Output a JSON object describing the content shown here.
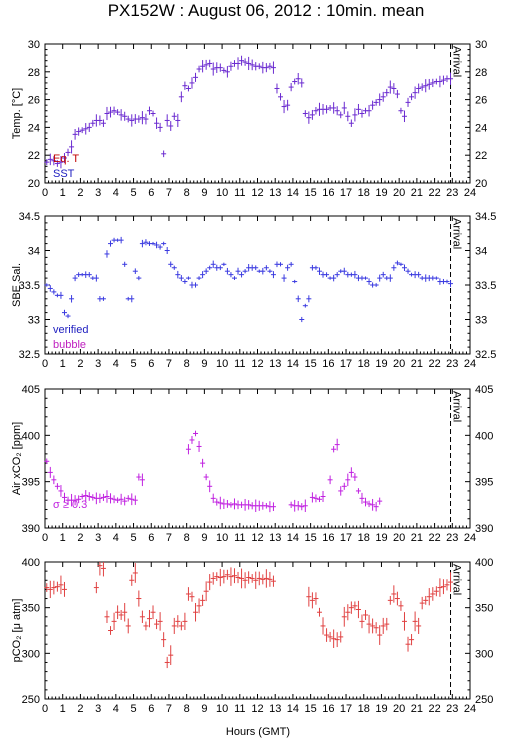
{
  "title": "PX152W : August 06, 2012 : 10min. mean",
  "xlabel": "Hours (GMT)",
  "colors": {
    "temp": "#6a2ad0",
    "sal": "#3a3ae0",
    "sal_bubble": "#c020c0",
    "air": "#c020e0",
    "pco2": "#e04040",
    "label_red": "#c00000",
    "label_blue": "#2020c0"
  },
  "chart_data": [
    {
      "type": "scatter",
      "ylabel": "Temp. [°C]",
      "xlim": [
        0,
        24
      ],
      "ylim": [
        20,
        30
      ],
      "xticks": [
        "0",
        "1",
        "2",
        "3",
        "4",
        "5",
        "6",
        "7",
        "8",
        "9",
        "10",
        "11",
        "12",
        "13",
        "14",
        "15",
        "16",
        "17",
        "18",
        "19",
        "20",
        "21",
        "22",
        "23",
        "24"
      ],
      "yticks": [
        "20",
        "22",
        "24",
        "26",
        "28",
        "30"
      ],
      "annotation": "Arrival",
      "arrival_x": 22.9,
      "legend": [
        "Eq. T",
        "SST"
      ],
      "series": [
        {
          "name": "SST",
          "x": [
            0.1,
            0.3,
            0.5,
            0.7,
            0.9,
            1.1,
            1.3,
            1.5,
            1.7,
            1.9,
            2.1,
            2.3,
            2.5,
            2.7,
            2.9,
            3.1,
            3.3,
            3.5,
            3.7,
            3.9,
            4.1,
            4.3,
            4.5,
            4.7,
            4.9,
            5.1,
            5.3,
            5.5,
            5.7,
            5.9,
            6.1,
            6.3,
            6.5,
            6.7,
            6.9,
            7.1,
            7.3,
            7.5,
            7.7,
            7.9,
            8.1,
            8.3,
            8.5,
            8.7,
            8.9,
            9.1,
            9.3,
            9.5,
            9.7,
            9.9,
            10.1,
            10.3,
            10.5,
            10.7,
            10.9,
            11.1,
            11.3,
            11.5,
            11.7,
            11.9,
            12.1,
            12.3,
            12.5,
            12.7,
            12.9,
            13.1,
            13.3,
            13.5,
            13.7,
            13.9,
            14.1,
            14.3,
            14.5,
            14.7,
            14.9,
            15.1,
            15.3,
            15.5,
            15.7,
            15.9,
            16.1,
            16.3,
            16.5,
            16.7,
            16.9,
            17.1,
            17.3,
            17.5,
            17.7,
            17.9,
            18.1,
            18.3,
            18.5,
            18.7,
            18.9,
            19.1,
            19.3,
            19.5,
            19.7,
            19.9,
            20.1,
            20.3,
            20.5,
            20.7,
            20.9,
            21.1,
            21.3,
            21.5,
            21.7,
            21.9,
            22.1,
            22.3,
            22.5,
            22.7,
            22.9
          ],
          "y": [
            21.5,
            21.7,
            21.6,
            21.4,
            21.5,
            21.8,
            22.2,
            22.6,
            23.5,
            23.7,
            23.8,
            23.9,
            24.0,
            24.3,
            24.5,
            24.5,
            24.3,
            25.0,
            25.1,
            25.2,
            25.1,
            24.9,
            24.8,
            24.6,
            24.5,
            24.6,
            24.6,
            24.7,
            24.6,
            25.2,
            25.0,
            24.3,
            24.0,
            22.1,
            24.5,
            24.1,
            24.8,
            24.5,
            26.2,
            27.0,
            26.8,
            27.2,
            27.6,
            28.2,
            28.4,
            28.5,
            28.6,
            28.2,
            28.3,
            28.3,
            28.1,
            28.0,
            28.4,
            28.6,
            28.6,
            28.8,
            28.7,
            28.6,
            28.5,
            28.4,
            28.4,
            28.3,
            28.3,
            28.4,
            28.3,
            26.8,
            26.2,
            25.5,
            25.6,
            26.9,
            27.3,
            27.5,
            27.2,
            25.0,
            24.7,
            24.9,
            25.2,
            25.3,
            25.3,
            25.3,
            25.4,
            25.4,
            25.2,
            24.9,
            25.4,
            24.8,
            24.3,
            24.9,
            25.3,
            25.0,
            25.2,
            25.2,
            25.6,
            25.8,
            26.0,
            26.2,
            26.5,
            26.9,
            26.8,
            26.4,
            25.2,
            24.8,
            25.8,
            26.2,
            26.5,
            26.8,
            26.9,
            27.0,
            27.1,
            27.2,
            27.3,
            27.3,
            27.4,
            27.5,
            27.5
          ]
        }
      ]
    },
    {
      "type": "scatter",
      "ylabel": "SBE Sal.",
      "xlim": [
        0,
        24
      ],
      "ylim": [
        32.5,
        34.5
      ],
      "xticks": [
        "0",
        "1",
        "2",
        "3",
        "4",
        "5",
        "6",
        "7",
        "8",
        "9",
        "10",
        "11",
        "12",
        "13",
        "14",
        "15",
        "16",
        "17",
        "18",
        "19",
        "20",
        "21",
        "22",
        "23",
        "24"
      ],
      "yticks": [
        "32.5",
        "33",
        "33.5",
        "34",
        "34.5"
      ],
      "annotation": "Arrival",
      "arrival_x": 22.9,
      "legend": [
        "verified",
        "bubble"
      ],
      "series": [
        {
          "name": "verified",
          "x": [
            0.1,
            0.3,
            0.5,
            0.7,
            0.9,
            1.1,
            1.3,
            1.5,
            1.7,
            1.9,
            2.1,
            2.3,
            2.5,
            2.7,
            2.9,
            3.1,
            3.3,
            3.5,
            3.7,
            3.9,
            4.1,
            4.3,
            4.5,
            4.7,
            4.9,
            5.1,
            5.3,
            5.5,
            5.7,
            5.9,
            6.1,
            6.3,
            6.5,
            6.7,
            6.9,
            7.1,
            7.3,
            7.5,
            7.7,
            7.9,
            8.1,
            8.3,
            8.5,
            8.7,
            8.9,
            9.1,
            9.3,
            9.5,
            9.7,
            9.9,
            10.1,
            10.3,
            10.5,
            10.7,
            10.9,
            11.1,
            11.3,
            11.5,
            11.7,
            11.9,
            12.1,
            12.3,
            12.5,
            12.7,
            12.9,
            13.1,
            13.3,
            13.5,
            13.7,
            13.9,
            14.1,
            14.3,
            14.5,
            14.7,
            14.9,
            15.1,
            15.3,
            15.5,
            15.7,
            15.9,
            16.1,
            16.3,
            16.5,
            16.7,
            16.9,
            17.1,
            17.3,
            17.5,
            17.7,
            17.9,
            18.1,
            18.3,
            18.5,
            18.7,
            18.9,
            19.1,
            19.3,
            19.5,
            19.7,
            19.9,
            20.1,
            20.3,
            20.5,
            20.7,
            20.9,
            21.1,
            21.3,
            21.5,
            21.7,
            21.9,
            22.1,
            22.3,
            22.5,
            22.7,
            22.9
          ],
          "y": [
            33.5,
            33.45,
            33.4,
            33.35,
            33.35,
            33.1,
            33.05,
            33.3,
            33.6,
            33.65,
            33.65,
            33.65,
            33.65,
            33.6,
            33.6,
            33.3,
            33.3,
            33.95,
            34.1,
            34.15,
            34.15,
            34.15,
            33.8,
            33.3,
            33.3,
            33.7,
            33.6,
            34.1,
            34.12,
            34.1,
            34.1,
            34.08,
            34.05,
            34.1,
            34.0,
            33.8,
            33.75,
            33.65,
            33.6,
            33.55,
            33.6,
            33.5,
            33.5,
            33.6,
            33.65,
            33.7,
            33.75,
            33.8,
            33.75,
            33.75,
            33.8,
            33.7,
            33.65,
            33.6,
            33.7,
            33.65,
            33.7,
            33.75,
            33.75,
            33.75,
            33.7,
            33.7,
            33.75,
            33.7,
            33.65,
            33.8,
            33.8,
            33.6,
            33.75,
            33.8,
            33.55,
            33.3,
            33.0,
            33.2,
            33.3,
            33.75,
            33.75,
            33.7,
            33.65,
            33.65,
            33.6,
            33.6,
            33.65,
            33.7,
            33.7,
            33.65,
            33.65,
            33.65,
            33.6,
            33.6,
            33.6,
            33.55,
            33.5,
            33.5,
            33.6,
            33.65,
            33.6,
            33.6,
            33.75,
            33.82,
            33.8,
            33.75,
            33.7,
            33.65,
            33.65,
            33.65,
            33.6,
            33.6,
            33.6,
            33.6,
            33.6,
            33.55,
            33.55,
            33.55,
            33.52
          ]
        }
      ]
    },
    {
      "type": "scatter",
      "ylabel": "Air xCO₂ [ppm]",
      "xlim": [
        0,
        24
      ],
      "ylim": [
        390,
        405
      ],
      "xticks": [
        "0",
        "1",
        "2",
        "3",
        "4",
        "5",
        "6",
        "7",
        "8",
        "9",
        "10",
        "11",
        "12",
        "13",
        "14",
        "15",
        "16",
        "17",
        "18",
        "19",
        "20",
        "21",
        "22",
        "23",
        "24"
      ],
      "yticks": [
        "390",
        "395",
        "400",
        "405"
      ],
      "annotation": "Arrival",
      "arrival_x": 22.9,
      "legend": [
        "σ ≥ 0.3"
      ],
      "series": [
        {
          "name": "Air xCO2",
          "x": [
            0.1,
            0.3,
            0.5,
            0.7,
            0.9,
            1.1,
            1.3,
            1.5,
            1.7,
            1.9,
            2.1,
            2.3,
            2.5,
            2.7,
            2.9,
            3.1,
            3.3,
            3.5,
            3.7,
            3.9,
            4.1,
            4.3,
            4.5,
            4.7,
            4.9,
            5.1,
            5.3,
            5.5,
            8.1,
            8.3,
            8.5,
            8.7,
            8.9,
            9.1,
            9.3,
            9.5,
            9.7,
            9.9,
            10.1,
            10.3,
            10.5,
            10.7,
            10.9,
            11.1,
            11.3,
            11.5,
            11.7,
            11.9,
            12.1,
            12.3,
            12.5,
            12.7,
            12.9,
            13.9,
            14.1,
            14.3,
            14.5,
            14.7,
            15.1,
            15.3,
            15.5,
            15.7,
            16.1,
            16.3,
            16.5,
            16.7,
            16.9,
            17.1,
            17.3,
            17.5,
            17.7,
            17.9,
            18.1,
            18.3,
            18.5,
            18.7,
            18.9
          ],
          "y": [
            397.2,
            396.0,
            395.2,
            394.5,
            394.0,
            393.3,
            393.0,
            393.0,
            393.0,
            393.1,
            393.4,
            393.5,
            393.4,
            393.3,
            393.2,
            393.2,
            393.3,
            393.4,
            393.2,
            393.1,
            393.0,
            393.1,
            392.9,
            393.2,
            393.1,
            393.0,
            395.5,
            395.2,
            398.5,
            399.5,
            400.2,
            398.8,
            397.0,
            395.5,
            394.5,
            393.2,
            392.8,
            392.7,
            392.6,
            392.6,
            392.5,
            392.6,
            392.5,
            392.5,
            392.5,
            392.5,
            392.4,
            392.4,
            392.4,
            392.4,
            392.4,
            392.3,
            392.3,
            392.5,
            392.4,
            392.4,
            392.3,
            392.4,
            393.3,
            393.2,
            393.1,
            393.4,
            395.2,
            398.5,
            399.0,
            394.0,
            394.5,
            395.2,
            396.0,
            395.5,
            394.0,
            393.2,
            392.8,
            392.6,
            392.5,
            392.3,
            392.9
          ]
        }
      ]
    },
    {
      "type": "scatter",
      "ylabel": "pCO₂ [μ atm]",
      "xlim": [
        0,
        24
      ],
      "ylim": [
        250,
        400
      ],
      "xticks": [
        "0",
        "1",
        "2",
        "3",
        "4",
        "5",
        "6",
        "7",
        "8",
        "9",
        "10",
        "11",
        "12",
        "13",
        "14",
        "15",
        "16",
        "17",
        "18",
        "19",
        "20",
        "21",
        "22",
        "23",
        "24"
      ],
      "yticks": [
        "250",
        "300",
        "350",
        "400"
      ],
      "annotation": "Arrival",
      "arrival_x": 22.9,
      "series": [
        {
          "name": "pCO2",
          "x": [
            0.1,
            0.3,
            0.5,
            0.7,
            0.9,
            1.1,
            2.9,
            3.1,
            3.3,
            3.5,
            3.7,
            3.9,
            4.1,
            4.3,
            4.5,
            4.7,
            4.9,
            5.1,
            5.3,
            5.5,
            5.7,
            5.9,
            6.1,
            6.3,
            6.5,
            6.7,
            6.9,
            7.1,
            7.3,
            7.5,
            7.7,
            7.9,
            8.1,
            8.3,
            8.5,
            8.7,
            8.9,
            9.1,
            9.3,
            9.5,
            9.7,
            9.9,
            10.1,
            10.3,
            10.5,
            10.7,
            10.9,
            11.1,
            11.3,
            11.5,
            11.7,
            11.9,
            12.1,
            12.3,
            12.5,
            12.7,
            12.9,
            14.9,
            15.1,
            15.3,
            15.5,
            15.7,
            15.9,
            16.1,
            16.3,
            16.5,
            16.7,
            16.9,
            17.1,
            17.3,
            17.5,
            17.7,
            17.9,
            18.1,
            18.3,
            18.5,
            18.7,
            18.9,
            19.1,
            19.3,
            19.5,
            19.7,
            19.9,
            20.1,
            20.3,
            20.5,
            20.7,
            20.9,
            21.1,
            21.3,
            21.5,
            21.7,
            21.9,
            22.1,
            22.3,
            22.5,
            22.7,
            22.9
          ],
          "y": [
            372,
            370,
            372,
            373,
            375,
            370,
            372,
            396,
            393,
            340,
            325,
            335,
            345,
            342,
            345,
            330,
            380,
            388,
            360,
            340,
            330,
            338,
            345,
            332,
            335,
            315,
            290,
            298,
            330,
            335,
            330,
            335,
            365,
            362,
            345,
            352,
            358,
            368,
            378,
            382,
            384,
            383,
            384,
            386,
            384,
            385,
            383,
            382,
            380,
            383,
            382,
            380,
            382,
            381,
            382,
            381,
            379,
            362,
            358,
            360,
            345,
            330,
            320,
            318,
            316,
            315,
            318,
            340,
            345,
            350,
            352,
            348,
            335,
            342,
            332,
            330,
            328,
            320,
            330,
            332,
            358,
            365,
            360,
            352,
            335,
            310,
            315,
            335,
            330,
            355,
            358,
            362,
            365,
            368,
            372,
            373,
            375,
            378
          ]
        }
      ]
    }
  ]
}
